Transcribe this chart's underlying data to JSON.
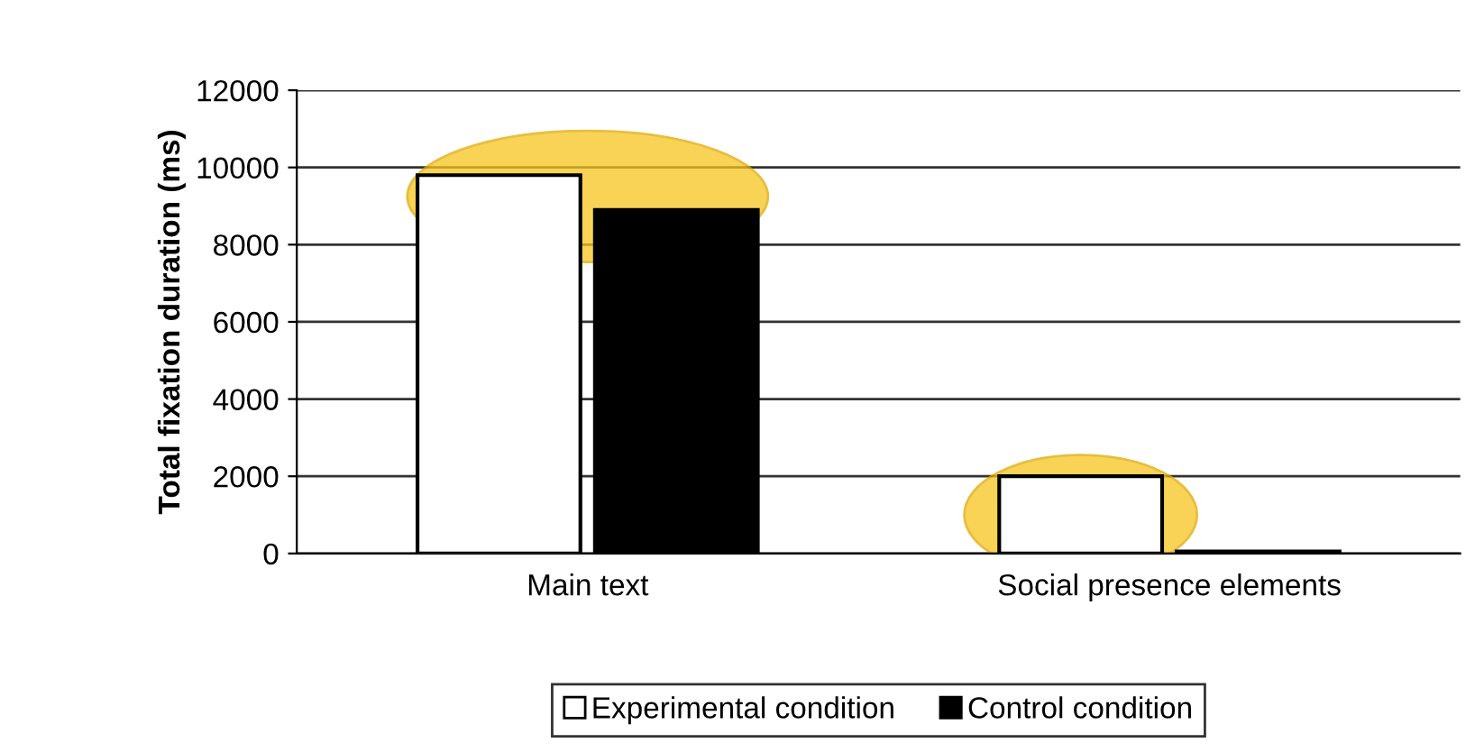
{
  "chart_data": {
    "type": "bar",
    "ylabel": "Total fixation duration (ms)",
    "categories": [
      "Main text",
      "Social presence elements"
    ],
    "series": [
      {
        "name": "Experimental condition",
        "color": "#ffffff",
        "values": [
          9800,
          2000
        ]
      },
      {
        "name": "Control condition",
        "color": "#000000",
        "values": [
          8900,
          50
        ]
      }
    ],
    "ylim": [
      0,
      12000
    ],
    "yticks": [
      0,
      2000,
      4000,
      6000,
      8000,
      10000,
      12000
    ],
    "grid": "y",
    "legend": "bottom"
  }
}
